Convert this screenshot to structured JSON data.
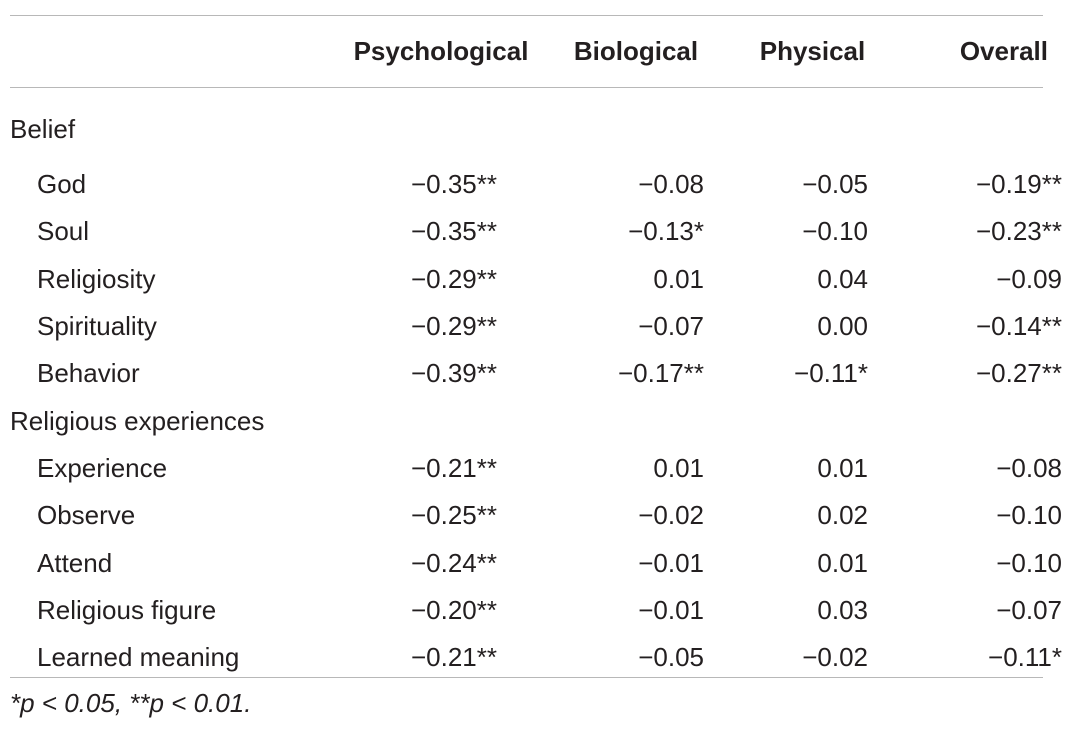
{
  "table": {
    "columns": [
      "",
      "Psychological",
      "Biological",
      "Physical",
      "Overall"
    ],
    "sections": [
      {
        "heading": "Belief",
        "rows": [
          {
            "label": "God",
            "values": [
              "−0.35**",
              "−0.08",
              "−0.05",
              "−0.19**"
            ]
          },
          {
            "label": "Soul",
            "values": [
              "−0.35**",
              "−0.13*",
              "−0.10",
              "−0.23**"
            ]
          },
          {
            "label": "Religiosity",
            "values": [
              "−0.29**",
              "0.01",
              "0.04",
              "−0.09"
            ]
          },
          {
            "label": "Spirituality",
            "values": [
              "−0.29**",
              "−0.07",
              "0.00",
              "−0.14**"
            ]
          },
          {
            "label": "Behavior",
            "values": [
              "−0.39**",
              "−0.17**",
              "−0.11*",
              "−0.27**"
            ]
          }
        ]
      },
      {
        "heading": "Religious experiences",
        "rows": [
          {
            "label": "Experience",
            "values": [
              "−0.21**",
              "0.01",
              "0.01",
              "−0.08"
            ]
          },
          {
            "label": "Observe",
            "values": [
              "−0.25**",
              "−0.02",
              "0.02",
              "−0.10"
            ]
          },
          {
            "label": "Attend",
            "values": [
              "−0.24**",
              "−0.01",
              "0.01",
              "−0.10"
            ]
          },
          {
            "label": "Religious figure",
            "values": [
              "−0.20**",
              "−0.01",
              "0.03",
              "−0.07"
            ]
          },
          {
            "label": "Learned meaning",
            "values": [
              "−0.21**",
              "−0.05",
              "−0.02",
              "−0.11*"
            ]
          }
        ]
      }
    ],
    "footnote": "*p < 0.05, **p < 0.01."
  }
}
